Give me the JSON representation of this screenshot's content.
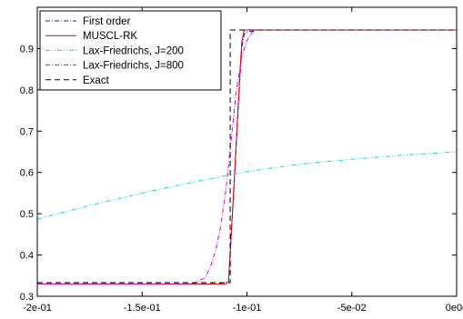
{
  "chart_data": {
    "type": "line",
    "title": "",
    "xlabel": "",
    "ylabel": "",
    "xlim": [
      -0.2,
      0.0
    ],
    "ylim": [
      0.3,
      1.0
    ],
    "x_ticks": [
      {
        "value": -0.2,
        "label": "-2e-01"
      },
      {
        "value": -0.15,
        "label": "-1.5e-01"
      },
      {
        "value": -0.1,
        "label": "-1e-01"
      },
      {
        "value": -0.05,
        "label": "-5e-02"
      },
      {
        "value": 0.0,
        "label": "0e00"
      }
    ],
    "y_ticks": [
      {
        "value": 0.3,
        "label": "0.3"
      },
      {
        "value": 0.4,
        "label": "0.4"
      },
      {
        "value": 0.5,
        "label": "0.5"
      },
      {
        "value": 0.6,
        "label": "0.6"
      },
      {
        "value": 0.7,
        "label": "0.7"
      },
      {
        "value": 0.8,
        "label": "0.8"
      },
      {
        "value": 0.9,
        "label": "0.9"
      }
    ],
    "grid": false,
    "legend_position": "top-left",
    "series": [
      {
        "name": "First order",
        "color": "#1a1acc",
        "style": "dash-dot",
        "x": [
          -0.2,
          -0.115,
          -0.1088,
          -0.1063,
          -0.1038,
          -0.1025,
          -0.1013,
          -0.1,
          -0.0975,
          -0.095,
          0.0
        ],
        "y": [
          0.33,
          0.33,
          0.335,
          0.55,
          0.79,
          0.9,
          0.935,
          0.94,
          0.942,
          0.945,
          0.945
        ]
      },
      {
        "name": "MUSCL-RK",
        "color": "#dd0000",
        "style": "solid",
        "x": [
          -0.2,
          -0.11,
          -0.1088,
          -0.1063,
          -0.1038,
          -0.1025,
          -0.1013,
          0.0
        ],
        "y": [
          0.33,
          0.33,
          0.335,
          0.56,
          0.8,
          0.915,
          0.945,
          0.945
        ]
      },
      {
        "name": "Lax-Friedrichs, J=200",
        "color": "#00dddd",
        "style": "dash-dot-dot",
        "x": [
          -0.2,
          -0.175,
          -0.15,
          -0.125,
          -0.1,
          -0.075,
          -0.05,
          -0.025,
          0.0
        ],
        "y": [
          0.487,
          0.52,
          0.55,
          0.577,
          0.602,
          0.62,
          0.632,
          0.642,
          0.65
        ]
      },
      {
        "name": "Lax-Friedrichs, J=800",
        "color": "#dd00dd",
        "style": "dash-dot",
        "x": [
          -0.2,
          -0.1275,
          -0.1238,
          -0.12,
          -0.1175,
          -0.115,
          -0.1125,
          -0.11,
          -0.1075,
          -0.105,
          -0.1025,
          -0.1,
          -0.0975,
          -0.095,
          0.0
        ],
        "y": [
          0.33,
          0.33,
          0.335,
          0.345,
          0.37,
          0.41,
          0.47,
          0.56,
          0.68,
          0.8,
          0.88,
          0.92,
          0.94,
          0.945,
          0.945
        ]
      },
      {
        "name": "Exact",
        "color": "#000000",
        "style": "dashed",
        "x": [
          -0.2,
          -0.108,
          -0.108,
          0.0
        ],
        "y": [
          0.333,
          0.333,
          0.945,
          0.945
        ]
      }
    ]
  }
}
